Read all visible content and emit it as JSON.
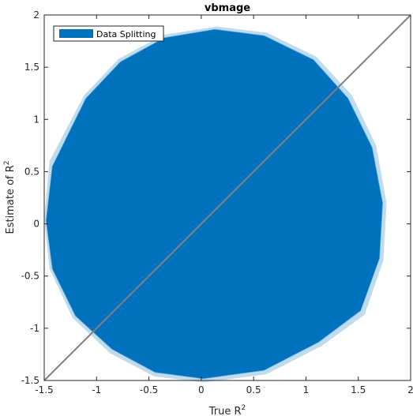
{
  "chart_data": {
    "type": "area",
    "title": "vbmage",
    "xlabel": "True R",
    "xlabel_sup": "2",
    "ylabel": "Estimate of R",
    "ylabel_sup": "2",
    "xlim": [
      -1.5,
      2
    ],
    "ylim": [
      -1.5,
      2
    ],
    "xticks": [
      -1.5,
      -1,
      -0.5,
      0,
      0.5,
      1,
      1.5,
      2
    ],
    "yticks": [
      -1.5,
      -1,
      -0.5,
      0,
      0.5,
      1,
      1.5,
      2
    ],
    "xtick_labels": [
      "-1.5",
      "-1",
      "-0.5",
      "0",
      "0.5",
      "1",
      "1.5",
      "2"
    ],
    "ytick_labels": [
      "-1.5",
      "-1",
      "-0.5",
      "0",
      "0.5",
      "1",
      "1.5",
      "2"
    ],
    "grid": false,
    "legend_position": "top-left",
    "series": [
      {
        "name": "Data Splitting",
        "color": "#0072BD",
        "polygon": [
          [
            0.13,
            1.86
          ],
          [
            0.6,
            1.8
          ],
          [
            1.07,
            1.57
          ],
          [
            1.4,
            1.2
          ],
          [
            1.63,
            0.73
          ],
          [
            1.73,
            0.2
          ],
          [
            1.7,
            -0.33
          ],
          [
            1.52,
            -0.83
          ],
          [
            1.12,
            -1.13
          ],
          [
            0.6,
            -1.4
          ],
          [
            0.02,
            -1.48
          ],
          [
            -0.44,
            -1.42
          ],
          [
            -0.85,
            -1.2
          ],
          [
            -1.2,
            -0.88
          ],
          [
            -1.42,
            -0.43
          ],
          [
            -1.48,
            0.03
          ],
          [
            -1.42,
            0.55
          ],
          [
            -1.1,
            1.2
          ],
          [
            -0.77,
            1.55
          ],
          [
            -0.35,
            1.78
          ]
        ],
        "halo": [
          [
            0.15,
            1.89
          ],
          [
            0.63,
            1.83
          ],
          [
            1.1,
            1.6
          ],
          [
            1.44,
            1.23
          ],
          [
            1.67,
            0.75
          ],
          [
            1.77,
            0.2
          ],
          [
            1.74,
            -0.35
          ],
          [
            1.56,
            -0.87
          ],
          [
            1.15,
            -1.17
          ],
          [
            0.62,
            -1.44
          ],
          [
            0.02,
            -1.52
          ],
          [
            -0.45,
            -1.46
          ],
          [
            -0.87,
            -1.24
          ],
          [
            -1.23,
            -0.9
          ],
          [
            -1.45,
            -0.43
          ],
          [
            -1.5,
            0.05
          ],
          [
            -1.45,
            0.6
          ],
          [
            -1.12,
            1.23
          ],
          [
            -0.79,
            1.58
          ],
          [
            -0.36,
            1.81
          ]
        ]
      }
    ],
    "reference_line": {
      "x": [
        -1.5,
        2
      ],
      "y": [
        -1.5,
        2
      ],
      "color": "#808080"
    }
  }
}
